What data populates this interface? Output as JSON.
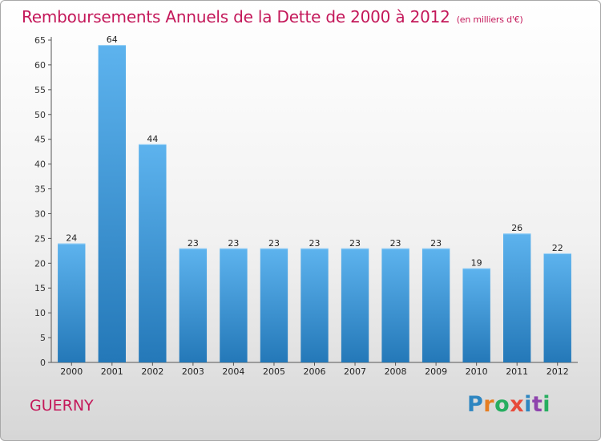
{
  "title": "Remboursements Annuels de la Dette de 2000 à 2012",
  "subtitle": "(en milliers d'€)",
  "place": "GUERNY",
  "logo": {
    "letters": [
      {
        "ch": "P",
        "color": "#2e86c1"
      },
      {
        "ch": "r",
        "color": "#e67e22"
      },
      {
        "ch": "o",
        "color": "#27ae60"
      },
      {
        "ch": "x",
        "color": "#e74c3c"
      },
      {
        "ch": "i",
        "color": "#2e86c1"
      },
      {
        "ch": "t",
        "color": "#8e44ad"
      },
      {
        "ch": "i",
        "color": "#27ae60"
      }
    ]
  },
  "colors": {
    "bar_top": "#5db3ee",
    "bar_bottom": "#2478b8",
    "title": "#c4185a"
  },
  "chart_data": {
    "type": "bar",
    "categories": [
      "2000",
      "2001",
      "2002",
      "2003",
      "2004",
      "2005",
      "2006",
      "2007",
      "2008",
      "2009",
      "2010",
      "2011",
      "2012"
    ],
    "values": [
      24,
      64,
      44,
      23,
      23,
      23,
      23,
      23,
      23,
      23,
      19,
      26,
      22
    ],
    "title": "Remboursements Annuels de la Dette de 2000 à 2012",
    "subtitle": "(en milliers d'€)",
    "ylim": [
      0,
      65
    ],
    "yticks": [
      0,
      5,
      10,
      15,
      20,
      25,
      30,
      35,
      40,
      45,
      50,
      55,
      60,
      65
    ],
    "grid": false,
    "data_labels": true
  }
}
